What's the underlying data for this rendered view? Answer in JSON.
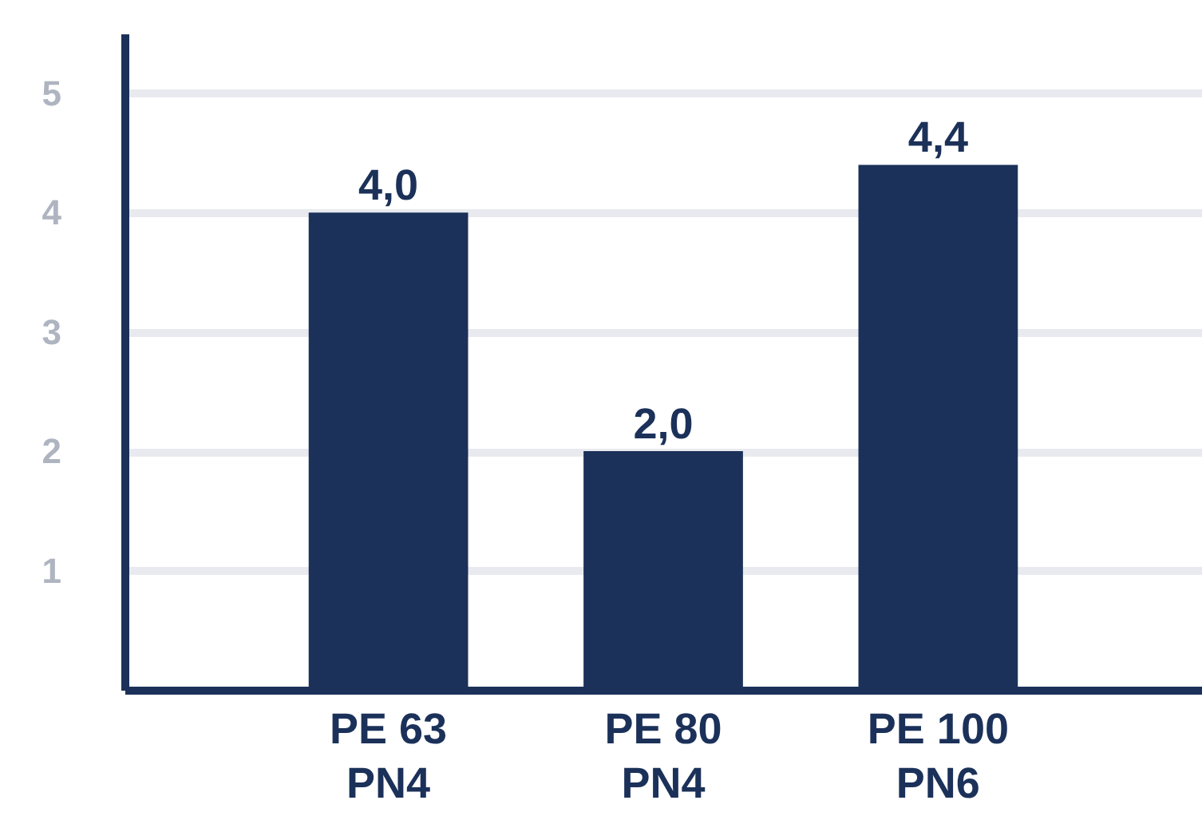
{
  "chart_data": {
    "type": "bar",
    "categories": [
      "PE 63\nPN4",
      "PE 80\nPN4",
      "PE 100\nPN6"
    ],
    "values": [
      4.0,
      2.0,
      4.4
    ],
    "value_labels": [
      "4,0",
      "2,0",
      "4,4"
    ],
    "color": "#1b3159",
    "ylim": [
      0,
      5.5
    ],
    "yticks": [
      1,
      2,
      3,
      4,
      5
    ],
    "grid": "y"
  }
}
